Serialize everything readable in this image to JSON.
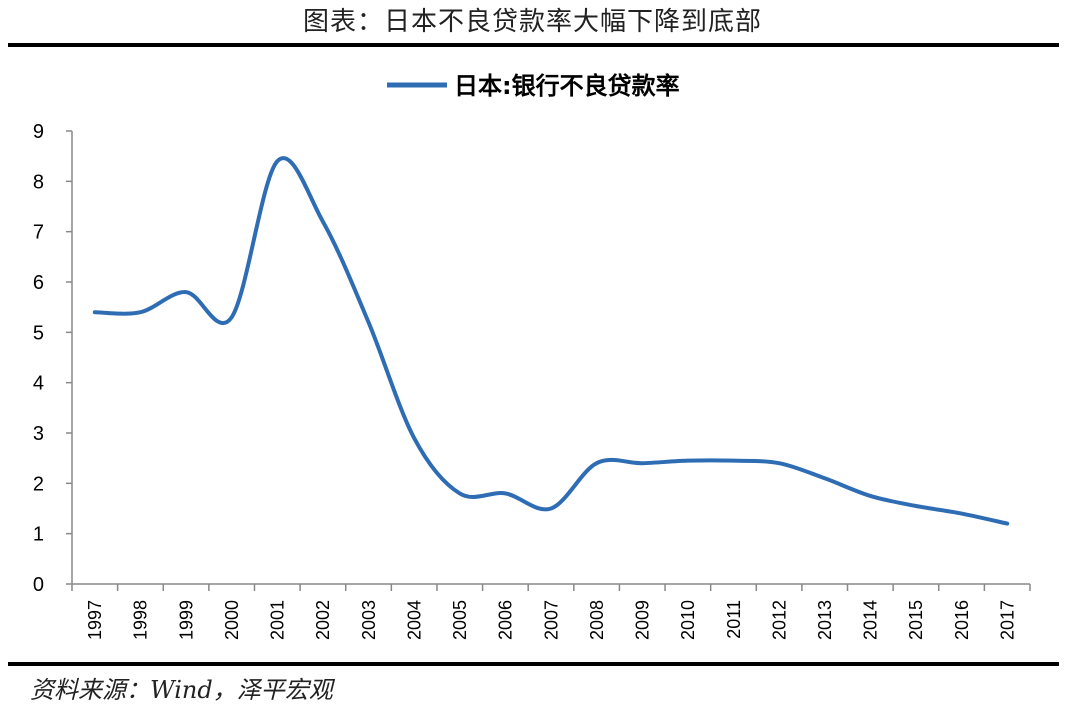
{
  "page": {
    "title": "图表：日本不良贷款率大幅下降到底部",
    "source": "资料来源：Wind，泽平宏观"
  },
  "colors": {
    "series": "#2e6db4",
    "axis": "#888888",
    "rule": "#000000"
  },
  "chart_data": {
    "type": "line",
    "title": "",
    "xlabel": "",
    "ylabel": "",
    "ylim": [
      0,
      9
    ],
    "yticks": [
      "0",
      "1",
      "2",
      "3",
      "4",
      "5",
      "6",
      "7",
      "8",
      "9"
    ],
    "grid": false,
    "legend_position": "top-center",
    "categories": [
      "1997",
      "1998",
      "1999",
      "2000",
      "2001",
      "2002",
      "2003",
      "2004",
      "2005",
      "2006",
      "2007",
      "2008",
      "2009",
      "2010",
      "2011",
      "2012",
      "2013",
      "2014",
      "2015",
      "2016",
      "2017"
    ],
    "series": [
      {
        "name": "日本:银行不良贷款率",
        "values": [
          5.4,
          5.4,
          5.8,
          5.3,
          8.4,
          7.2,
          5.2,
          2.9,
          1.8,
          1.8,
          1.5,
          2.4,
          2.4,
          2.45,
          2.45,
          2.4,
          2.1,
          1.75,
          1.55,
          1.4,
          1.2
        ]
      }
    ]
  }
}
